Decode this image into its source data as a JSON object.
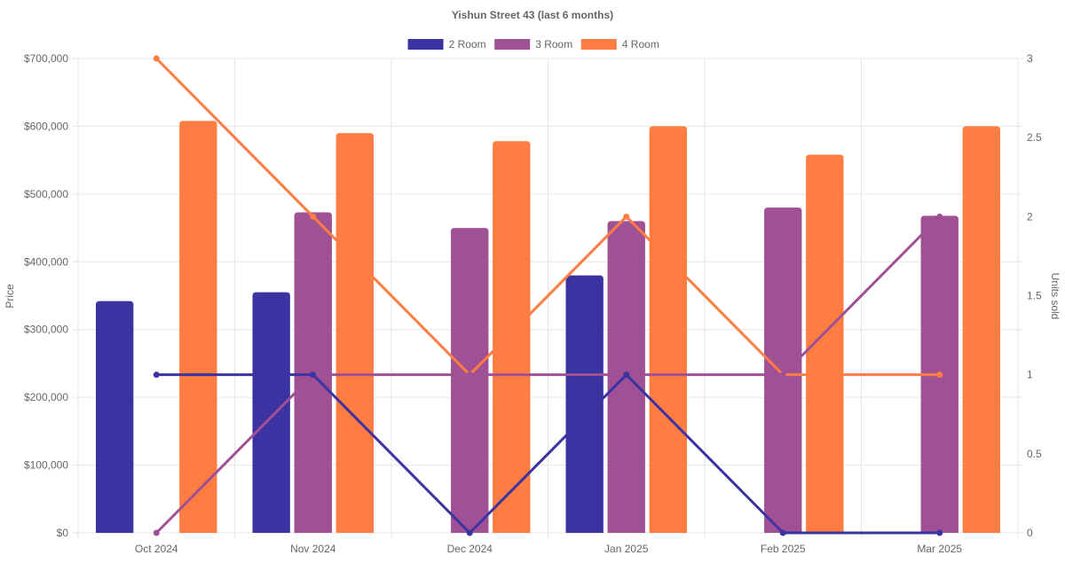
{
  "chart_data": {
    "type": "bar",
    "title": "Yishun Street 43 (last 6 months)",
    "categories": [
      "Oct 2024",
      "Nov 2024",
      "Dec 2024",
      "Jan 2025",
      "Feb 2025",
      "Mar 2025"
    ],
    "ylabel": "Price",
    "y2label": "Units sold",
    "ylim": [
      0,
      700000
    ],
    "y2lim": [
      0,
      3
    ],
    "yticks": [
      "$0",
      "$100,000",
      "$200,000",
      "$300,000",
      "$400,000",
      "$500,000",
      "$600,000",
      "$700,000"
    ],
    "y2ticks": [
      "0",
      "0.5",
      "1",
      "1.5",
      "2",
      "2.5",
      "3"
    ],
    "legend_position": "top-center",
    "grid": true,
    "series": [
      {
        "name": "2 Room",
        "color": "#3a33a1",
        "price": [
          342000,
          355000,
          null,
          380000,
          null,
          null
        ],
        "units": [
          1,
          1,
          0,
          1,
          0,
          0
        ]
      },
      {
        "name": "3 Room",
        "color": "#a05195",
        "price": [
          null,
          473000,
          450000,
          460000,
          480000,
          468000
        ],
        "units": [
          0,
          1,
          1,
          1,
          1,
          2
        ]
      },
      {
        "name": "4 Room",
        "color": "#ff7c43",
        "price": [
          608000,
          590000,
          578000,
          600000,
          558000,
          600000
        ],
        "units": [
          3,
          2,
          1,
          2,
          1,
          1
        ]
      }
    ]
  }
}
